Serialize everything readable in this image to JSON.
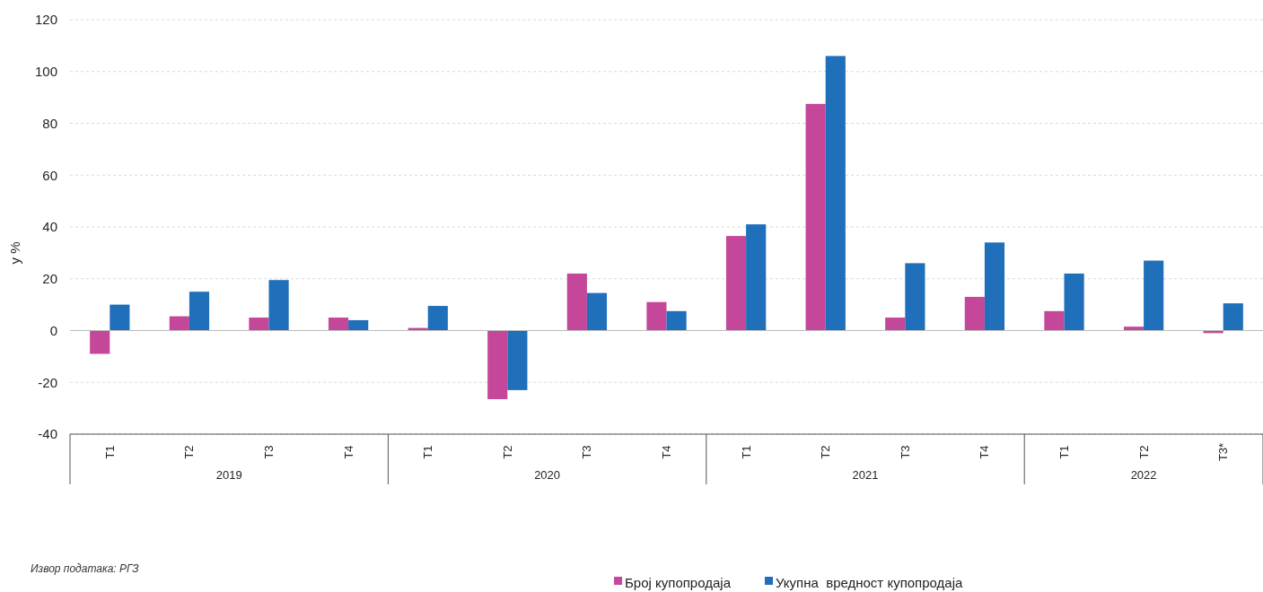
{
  "chart_data": {
    "type": "bar",
    "ylabel": "у %",
    "categories": [
      "Т1",
      "Т2",
      "Т3",
      "Т4",
      "Т1",
      "Т2",
      "Т3",
      "Т4",
      "Т1",
      "Т2",
      "Т3",
      "Т4",
      "Т1",
      "Т2",
      "Т3*"
    ],
    "series": [
      {
        "name": "Број купопродаја",
        "color": "#c4479a",
        "values": [
          -9,
          5.5,
          5,
          5,
          1,
          -26.5,
          22,
          11,
          36.5,
          87.5,
          5,
          13,
          7.5,
          1.5,
          -1
        ]
      },
      {
        "name": "Укупна  вредност купопродаја",
        "color": "#1f6fba",
        "values": [
          10,
          15,
          19.5,
          4,
          9.5,
          -23,
          14.5,
          7.5,
          41,
          106,
          26,
          34,
          22,
          27,
          10.5
        ]
      }
    ],
    "ylim": [
      -40,
      120
    ],
    "yticks": [
      -40,
      -20,
      0,
      20,
      40,
      60,
      80,
      100,
      120
    ],
    "grid": "y",
    "legend": "bottom",
    "annotations": [
      "2019",
      "2020",
      "2021",
      "2022",
      "Извор података: РГЗ"
    ]
  }
}
